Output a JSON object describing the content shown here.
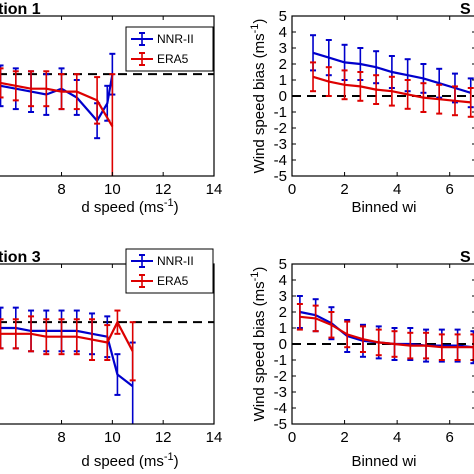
{
  "colors": {
    "nnr": "#0000cc",
    "era": "#dd0000"
  },
  "chart_data": [
    {
      "type": "line",
      "title": "tion 1",
      "xlabel": "d speed (ms",
      "xlabel_sup": "-1",
      "xlabel_close": ")",
      "ylabel": "",
      "xlim": [
        5.5,
        14
      ],
      "ylim": [
        -3.5,
        2
      ],
      "xticks": [
        8,
        10,
        12,
        14
      ],
      "yticks": [],
      "legend": [
        "NNR-II",
        "ERA5"
      ],
      "legend_position": "top-right",
      "series": [
        {
          "name": "NNR-II",
          "color": "#0000cc",
          "x": [
            5.6,
            6.2,
            6.8,
            7.4,
            8.0,
            8.6,
            9.4,
            9.8,
            10.0
          ],
          "y": [
            -0.4,
            -0.5,
            -0.6,
            -0.7,
            -0.5,
            -0.8,
            -1.6,
            -1.0,
            0.0
          ],
          "err": [
            0.7,
            0.7,
            0.7,
            0.7,
            0.7,
            0.6,
            0.6,
            0.6,
            0.7
          ]
        },
        {
          "name": "ERA5",
          "color": "#dd0000",
          "x": [
            5.6,
            6.2,
            6.8,
            7.4,
            8.0,
            8.6,
            9.4,
            10.0
          ],
          "y": [
            -0.3,
            -0.4,
            -0.5,
            -0.5,
            -0.6,
            -0.6,
            -0.9,
            -1.8
          ],
          "err": [
            0.5,
            0.5,
            0.6,
            0.6,
            0.6,
            0.6,
            0.8,
            1.8
          ]
        }
      ]
    },
    {
      "type": "line",
      "title": "S",
      "xlabel": "Binned wi",
      "ylabel": "Wind speed bias (ms",
      "ylabel_sup": "-1",
      "ylabel_close": ")",
      "xlim": [
        0,
        7
      ],
      "ylim": [
        -5,
        5
      ],
      "xticks": [
        0,
        2,
        4,
        6
      ],
      "yticks": [
        -5,
        -4,
        -3,
        -2,
        -1,
        0,
        1,
        2,
        3,
        4,
        5
      ],
      "series": [
        {
          "name": "NNR-II",
          "color": "#0000cc",
          "x": [
            0.8,
            1.4,
            2.0,
            2.6,
            3.2,
            3.8,
            4.4,
            5.0,
            5.6,
            6.2,
            6.8
          ],
          "y": [
            2.7,
            2.4,
            2.1,
            2.0,
            1.8,
            1.5,
            1.3,
            1.1,
            0.8,
            0.5,
            0.2
          ],
          "err": [
            1.1,
            1.1,
            1.1,
            1.0,
            1.0,
            1.0,
            1.0,
            0.9,
            0.9,
            0.9,
            0.9
          ]
        },
        {
          "name": "ERA5",
          "color": "#dd0000",
          "x": [
            0.8,
            1.4,
            2.0,
            2.6,
            3.2,
            3.8,
            4.4,
            5.0,
            5.6,
            6.2,
            6.8
          ],
          "y": [
            1.2,
            0.9,
            0.7,
            0.6,
            0.4,
            0.3,
            0.1,
            -0.1,
            -0.2,
            -0.3,
            -0.4
          ],
          "err": [
            0.9,
            0.9,
            0.9,
            0.9,
            0.9,
            0.9,
            0.9,
            0.9,
            0.9,
            0.9,
            0.9
          ]
        }
      ]
    },
    {
      "type": "line",
      "title": "tion 3",
      "xlabel": "d speed (ms",
      "xlabel_sup": "-1",
      "xlabel_close": ")",
      "ylabel": "",
      "xlim": [
        5.5,
        14
      ],
      "ylim": [
        -3.5,
        2
      ],
      "xticks": [
        8,
        10,
        12,
        14
      ],
      "yticks": [],
      "legend": [
        "NNR-II",
        "ERA5"
      ],
      "legend_position": "top-right",
      "series": [
        {
          "name": "NNR-II",
          "color": "#0000cc",
          "x": [
            5.6,
            6.2,
            6.8,
            7.4,
            8.0,
            8.6,
            9.2,
            9.8,
            10.2,
            10.8
          ],
          "y": [
            -0.2,
            -0.2,
            -0.3,
            -0.3,
            -0.3,
            -0.3,
            -0.4,
            -0.5,
            -1.8,
            -2.2
          ],
          "err": [
            0.7,
            0.7,
            0.7,
            0.7,
            0.7,
            0.7,
            0.7,
            0.7,
            0.7,
            1.5
          ]
        },
        {
          "name": "ERA5",
          "color": "#dd0000",
          "x": [
            5.6,
            6.2,
            6.8,
            7.4,
            8.0,
            8.6,
            9.2,
            9.8,
            10.2,
            10.8
          ],
          "y": [
            -0.4,
            -0.4,
            -0.4,
            -0.5,
            -0.5,
            -0.5,
            -0.6,
            -0.7,
            0.0,
            -1.0
          ],
          "err": [
            0.5,
            0.5,
            0.6,
            0.6,
            0.6,
            0.6,
            0.7,
            0.6,
            0.4,
            1.0
          ]
        }
      ]
    },
    {
      "type": "line",
      "title": "S",
      "xlabel": "Binned wi",
      "ylabel": "Wind speed bias (ms",
      "ylabel_sup": "-1",
      "ylabel_close": ")",
      "xlim": [
        0,
        7
      ],
      "ylim": [
        -5,
        5
      ],
      "xticks": [
        0,
        2,
        4,
        6
      ],
      "yticks": [
        -5,
        -4,
        -3,
        -2,
        -1,
        0,
        1,
        2,
        3,
        4,
        5
      ],
      "series": [
        {
          "name": "NNR-II",
          "color": "#0000cc",
          "x": [
            0.3,
            0.9,
            1.5,
            2.1,
            2.7,
            3.3,
            3.9,
            4.5,
            5.1,
            5.7,
            6.3,
            6.9
          ],
          "y": [
            2.0,
            1.8,
            1.3,
            0.5,
            0.2,
            0.1,
            0.0,
            0.0,
            -0.1,
            -0.1,
            -0.1,
            -0.2
          ],
          "err": [
            1.0,
            1.0,
            1.0,
            1.0,
            1.0,
            1.0,
            1.0,
            1.0,
            1.0,
            1.0,
            1.0,
            1.0
          ]
        },
        {
          "name": "ERA5",
          "color": "#dd0000",
          "x": [
            0.3,
            0.9,
            1.5,
            2.1,
            2.7,
            3.3,
            3.9,
            4.5,
            5.1,
            5.7,
            6.3,
            6.9
          ],
          "y": [
            1.7,
            1.6,
            1.2,
            0.6,
            0.3,
            0.1,
            0.0,
            -0.1,
            -0.1,
            -0.2,
            -0.2,
            -0.2
          ],
          "err": [
            0.8,
            0.8,
            0.8,
            0.8,
            0.8,
            0.8,
            0.8,
            0.8,
            0.8,
            0.8,
            0.8,
            0.8
          ]
        }
      ]
    }
  ]
}
